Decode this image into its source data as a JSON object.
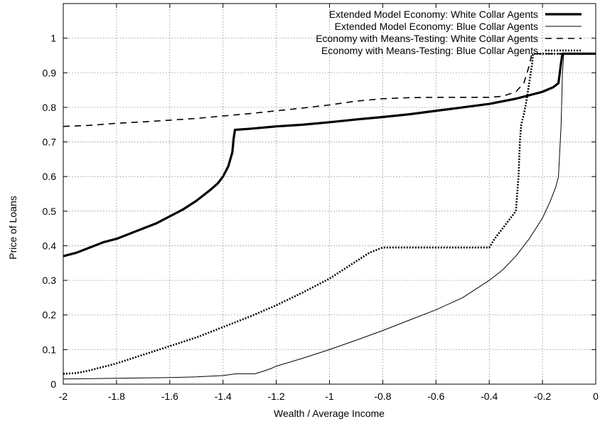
{
  "chart_data": {
    "type": "line",
    "xlabel": "Wealth / Average Income",
    "ylabel": "Price of Loans",
    "xlim": [
      -2,
      0
    ],
    "ylim": [
      0,
      1.1
    ],
    "x_ticks": [
      -2,
      -1.8,
      -1.6,
      -1.4,
      -1.2,
      -1,
      -0.8,
      -0.6,
      -0.4,
      -0.2,
      0
    ],
    "x_tick_labels": [
      "-2",
      "-1.8",
      "-1.6",
      "-1.4",
      "-1.2",
      "-1",
      "-0.8",
      "-0.6",
      "-0.4",
      "-0.2",
      "0"
    ],
    "y_ticks": [
      0,
      0.1,
      0.2,
      0.3,
      0.4,
      0.5,
      0.6,
      0.7,
      0.8,
      0.9,
      1
    ],
    "y_tick_labels": [
      "0",
      "0.1",
      "0.2",
      "0.3",
      "0.4",
      "0.5",
      "0.6",
      "0.7",
      "0.8",
      "0.9",
      "1"
    ],
    "grid": true,
    "legend_position": "top-right",
    "series": [
      {
        "name": "Extended Model Economy: White Collar Agents",
        "style": "solid-thick",
        "points": [
          [
            -2.0,
            0.37
          ],
          [
            -1.95,
            0.38
          ],
          [
            -1.9,
            0.395
          ],
          [
            -1.85,
            0.41
          ],
          [
            -1.8,
            0.42
          ],
          [
            -1.75,
            0.435
          ],
          [
            -1.7,
            0.45
          ],
          [
            -1.65,
            0.465
          ],
          [
            -1.6,
            0.485
          ],
          [
            -1.55,
            0.505
          ],
          [
            -1.5,
            0.53
          ],
          [
            -1.45,
            0.56
          ],
          [
            -1.42,
            0.58
          ],
          [
            -1.4,
            0.6
          ],
          [
            -1.38,
            0.63
          ],
          [
            -1.365,
            0.67
          ],
          [
            -1.36,
            0.71
          ],
          [
            -1.355,
            0.735
          ],
          [
            -1.3,
            0.738
          ],
          [
            -1.2,
            0.745
          ],
          [
            -1.1,
            0.75
          ],
          [
            -1.0,
            0.757
          ],
          [
            -0.9,
            0.765
          ],
          [
            -0.8,
            0.772
          ],
          [
            -0.7,
            0.78
          ],
          [
            -0.6,
            0.79
          ],
          [
            -0.5,
            0.8
          ],
          [
            -0.4,
            0.81
          ],
          [
            -0.3,
            0.825
          ],
          [
            -0.2,
            0.845
          ],
          [
            -0.16,
            0.858
          ],
          [
            -0.14,
            0.87
          ],
          [
            -0.13,
            0.93
          ],
          [
            -0.125,
            0.955
          ],
          [
            -0.1,
            0.955
          ],
          [
            0.0,
            0.955
          ]
        ]
      },
      {
        "name": "Extended Model Economy: Blue Collar Agents",
        "style": "solid-thin",
        "points": [
          [
            -2.0,
            0.015
          ],
          [
            -1.8,
            0.017
          ],
          [
            -1.6,
            0.019
          ],
          [
            -1.5,
            0.021
          ],
          [
            -1.4,
            0.025
          ],
          [
            -1.35,
            0.03
          ],
          [
            -1.28,
            0.03
          ],
          [
            -1.25,
            0.037
          ],
          [
            -1.22,
            0.045
          ],
          [
            -1.2,
            0.052
          ],
          [
            -1.1,
            0.075
          ],
          [
            -1.0,
            0.1
          ],
          [
            -0.9,
            0.127
          ],
          [
            -0.8,
            0.155
          ],
          [
            -0.7,
            0.185
          ],
          [
            -0.6,
            0.215
          ],
          [
            -0.5,
            0.25
          ],
          [
            -0.4,
            0.3
          ],
          [
            -0.35,
            0.33
          ],
          [
            -0.3,
            0.37
          ],
          [
            -0.25,
            0.42
          ],
          [
            -0.2,
            0.48
          ],
          [
            -0.17,
            0.53
          ],
          [
            -0.15,
            0.57
          ],
          [
            -0.14,
            0.6
          ],
          [
            -0.13,
            0.75
          ],
          [
            -0.125,
            0.9
          ],
          [
            -0.12,
            0.955
          ],
          [
            0.0,
            0.955
          ]
        ]
      },
      {
        "name": "Economy with Means-Testing: White Collar Agents",
        "style": "dashed",
        "points": [
          [
            -2.0,
            0.745
          ],
          [
            -1.9,
            0.748
          ],
          [
            -1.8,
            0.754
          ],
          [
            -1.7,
            0.758
          ],
          [
            -1.6,
            0.763
          ],
          [
            -1.5,
            0.768
          ],
          [
            -1.4,
            0.775
          ],
          [
            -1.3,
            0.782
          ],
          [
            -1.2,
            0.79
          ],
          [
            -1.1,
            0.798
          ],
          [
            -1.0,
            0.807
          ],
          [
            -0.9,
            0.818
          ],
          [
            -0.8,
            0.825
          ],
          [
            -0.7,
            0.828
          ],
          [
            -0.6,
            0.829
          ],
          [
            -0.5,
            0.829
          ],
          [
            -0.4,
            0.829
          ],
          [
            -0.35,
            0.832
          ],
          [
            -0.3,
            0.845
          ],
          [
            -0.27,
            0.87
          ],
          [
            -0.25,
            0.92
          ],
          [
            -0.24,
            0.955
          ],
          [
            -0.1,
            0.955
          ],
          [
            0.0,
            0.955
          ]
        ]
      },
      {
        "name": "Economy with Means-Testing: Blue Collar Agents",
        "style": "dotted",
        "points": [
          [
            -2.0,
            0.03
          ],
          [
            -1.95,
            0.032
          ],
          [
            -1.9,
            0.04
          ],
          [
            -1.85,
            0.05
          ],
          [
            -1.8,
            0.06
          ],
          [
            -1.7,
            0.085
          ],
          [
            -1.6,
            0.11
          ],
          [
            -1.5,
            0.135
          ],
          [
            -1.4,
            0.165
          ],
          [
            -1.3,
            0.195
          ],
          [
            -1.2,
            0.228
          ],
          [
            -1.1,
            0.265
          ],
          [
            -1.0,
            0.305
          ],
          [
            -0.9,
            0.355
          ],
          [
            -0.85,
            0.38
          ],
          [
            -0.8,
            0.395
          ],
          [
            -0.7,
            0.395
          ],
          [
            -0.6,
            0.395
          ],
          [
            -0.5,
            0.395
          ],
          [
            -0.4,
            0.395
          ],
          [
            -0.38,
            0.42
          ],
          [
            -0.35,
            0.45
          ],
          [
            -0.3,
            0.5
          ],
          [
            -0.29,
            0.6
          ],
          [
            -0.285,
            0.7
          ],
          [
            -0.28,
            0.75
          ],
          [
            -0.27,
            0.78
          ],
          [
            -0.26,
            0.82
          ],
          [
            -0.25,
            0.87
          ],
          [
            -0.24,
            0.92
          ],
          [
            -0.235,
            0.955
          ],
          [
            -0.1,
            0.955
          ],
          [
            0.0,
            0.955
          ]
        ]
      }
    ]
  }
}
